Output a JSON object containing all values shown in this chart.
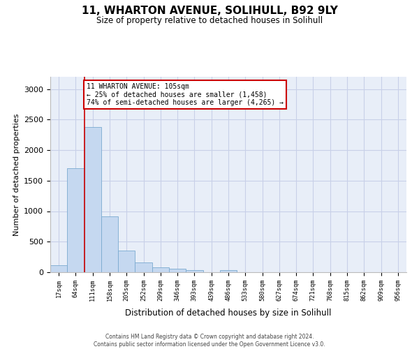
{
  "title_line1": "11, WHARTON AVENUE, SOLIHULL, B92 9LY",
  "title_line2": "Size of property relative to detached houses in Solihull",
  "xlabel": "Distribution of detached houses by size in Solihull",
  "ylabel": "Number of detached properties",
  "bar_labels": [
    "17sqm",
    "64sqm",
    "111sqm",
    "158sqm",
    "205sqm",
    "252sqm",
    "299sqm",
    "346sqm",
    "393sqm",
    "439sqm",
    "486sqm",
    "533sqm",
    "580sqm",
    "627sqm",
    "674sqm",
    "721sqm",
    "768sqm",
    "815sqm",
    "862sqm",
    "909sqm",
    "956sqm"
  ],
  "bar_values": [
    110,
    1700,
    2380,
    920,
    350,
    155,
    80,
    55,
    35,
    0,
    35,
    0,
    0,
    0,
    0,
    0,
    0,
    0,
    0,
    0,
    0
  ],
  "bar_color": "#c5d8f0",
  "bar_edge_color": "#7aaad0",
  "vline_index": 2,
  "vline_color": "#cc0000",
  "annotation_line1": "11 WHARTON AVENUE: 105sqm",
  "annotation_line2": "← 25% of detached houses are smaller (1,458)",
  "annotation_line3": "74% of semi-detached houses are larger (4,265) →",
  "annotation_box_facecolor": "#ffffff",
  "annotation_box_edgecolor": "#cc0000",
  "ylim": [
    0,
    3200
  ],
  "yticks": [
    0,
    500,
    1000,
    1500,
    2000,
    2500,
    3000
  ],
  "grid_color": "#c8d0e8",
  "bg_color": "#e8eef8",
  "footer_line1": "Contains HM Land Registry data © Crown copyright and database right 2024.",
  "footer_line2": "Contains public sector information licensed under the Open Government Licence v3.0."
}
